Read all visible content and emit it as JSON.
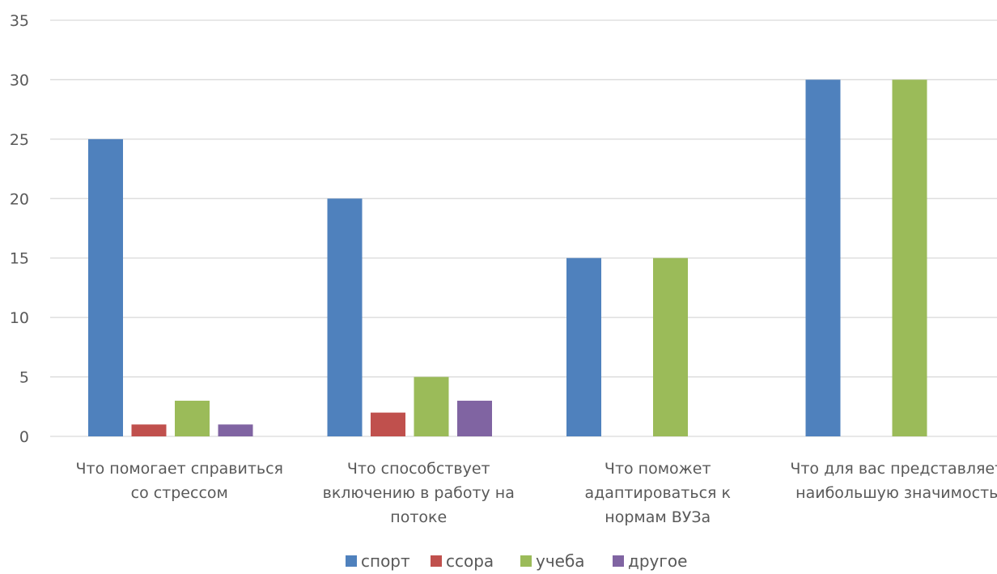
{
  "chart_data": {
    "type": "bar",
    "categories": [
      [
        "Что помогает справиться",
        "со стрессом"
      ],
      [
        "Что способствует",
        "включению в работу на",
        "потоке"
      ],
      [
        "Что поможет",
        "адаптироваться к",
        "нормам ВУЗа"
      ],
      [
        "Что для вас представляет",
        "наибольшую значимость"
      ]
    ],
    "series": [
      {
        "name": "спорт",
        "color": "#4f81bd",
        "values": [
          25,
          20,
          15,
          30
        ]
      },
      {
        "name": "ссора",
        "color": "#c0504d",
        "values": [
          1,
          2,
          0,
          0
        ]
      },
      {
        "name": "учеба",
        "color": "#9bbb59",
        "values": [
          3,
          5,
          15,
          30
        ]
      },
      {
        "name": "другое",
        "color": "#8064a2",
        "values": [
          1,
          3,
          0,
          0
        ]
      }
    ],
    "yticks": [
      "0",
      "5",
      "10",
      "15",
      "20",
      "25",
      "30",
      "35"
    ],
    "ylim": [
      0,
      35
    ],
    "grid": true,
    "legend_position": "bottom",
    "gridline_color": "#d9d9d9"
  }
}
